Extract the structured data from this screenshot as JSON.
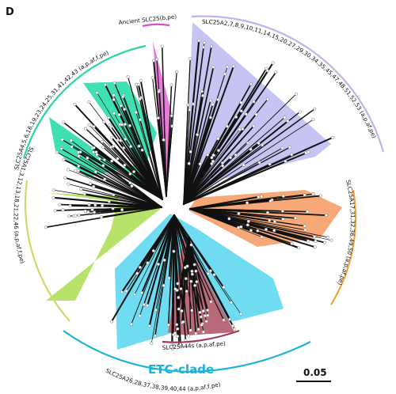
{
  "panel_letter": "D",
  "clades": [
    {
      "id": "ancient",
      "label": "Ancient SLC25(b,pe)",
      "fill": "#e87bd9",
      "arc": "#d94fc4"
    },
    {
      "id": "slc25a2",
      "label": "SLC25A2,7,8,9,10,11,14,15,20,27,29,30,34,35,45,47,48,51,52,53 (a,p,af,pe)",
      "fill": "#c6c4f2",
      "arc": "#a9a6e8"
    },
    {
      "id": "slc25a17",
      "label": "SLC25A17,31,32,36,49,50 (a,p,af,pe)",
      "fill": "#f7a877",
      "arc": "#f0a23f"
    },
    {
      "id": "slc25a26",
      "label": "SLC25A26,28,37,38,39,40,44 (a,p,af,f,pe)",
      "fill": "#6fdcf2",
      "arc": "#18b5d8"
    },
    {
      "id": "slc25a44s",
      "label": "SLC25A44s (a,p,af,pe)",
      "fill": "#b86a78",
      "arc": "#a33a57"
    },
    {
      "id": "slc25a1",
      "label": "SLC25A1,3,12,13,18,21,22,46 (a,p,af,f,pe)",
      "fill": "#b7e36a",
      "arc": "#c2e06a"
    },
    {
      "id": "slc25a4",
      "label": "SLC25A4,5,6,16,19,23,24,25,31,41,42,43 (a,p,af,f,pe)",
      "fill": "#3fe0b4",
      "arc": "#2bd6a6"
    }
  ],
  "etc_clade_label": "ETC-clade",
  "scale_bar_label": "0.05"
}
